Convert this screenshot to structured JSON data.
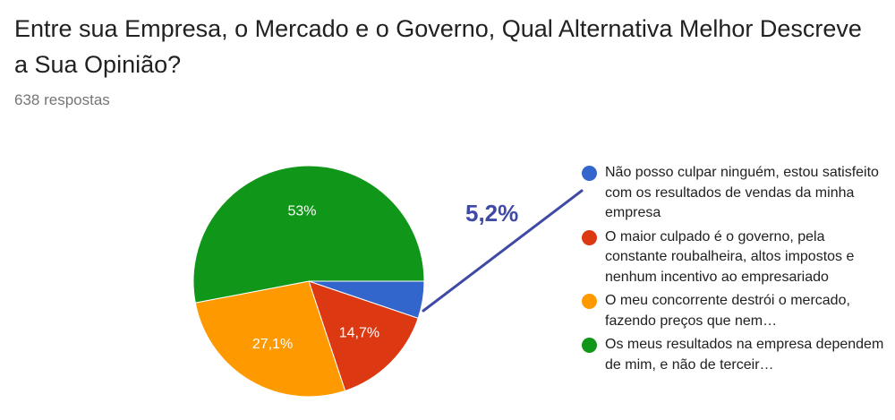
{
  "form": {
    "title": "Entre sua Empresa, o Mercado e o Governo, Qual Alternativa Melhor Descreve a Sua Opinião?",
    "responses": "638 respostas"
  },
  "chart_data": {
    "type": "pie",
    "slices": [
      {
        "label": "Não posso culpar ninguém, estou satisfeito com os resultados de vendas da minha empresa",
        "value": 5.2,
        "display": "",
        "color": "#3366cc"
      },
      {
        "label": "O maior culpado é o governo, pela constante roubalheira, altos impostos e nenhum incentivo ao empresariado",
        "value": 14.7,
        "display": "14,7%",
        "color": "#dc3912"
      },
      {
        "label": "O meu concorrente destrói o mercado, fazendo preços que nem…",
        "value": 27.1,
        "display": "27,1%",
        "color": "#ff9900"
      },
      {
        "label": "Os meus resultados na empresa dependem de mim, e não de terceir…",
        "value": 53,
        "display": "53%",
        "color": "#109618"
      }
    ],
    "callout": {
      "text": "5,2%",
      "color": "#3f4aa5"
    }
  }
}
